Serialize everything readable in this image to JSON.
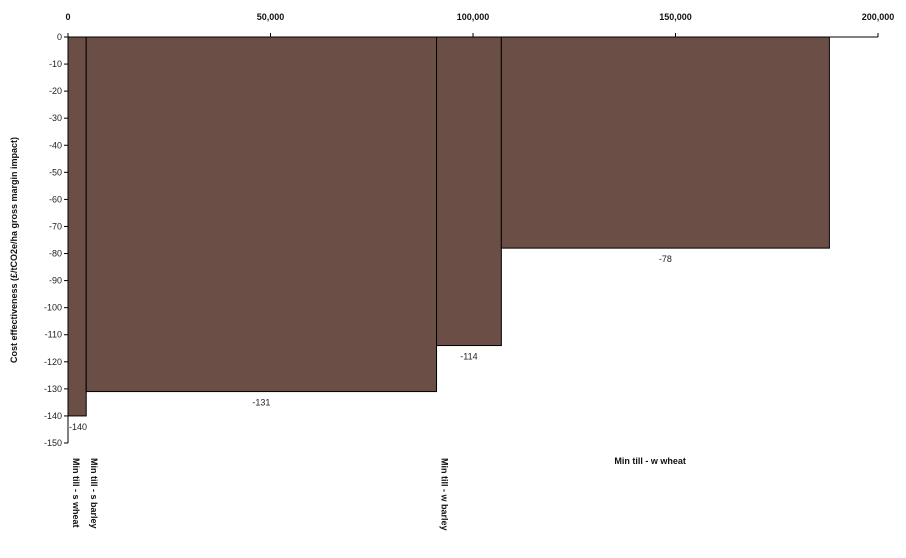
{
  "chart_data": {
    "type": "bar",
    "subtype": "variable-width (marginal abatement cost curve)",
    "title": "",
    "ylabel": "Cost effectiveness (£/tCO2e/ha gross margin impact)",
    "xlabel": "",
    "x_axis_position": "top",
    "xlim": [
      0,
      200000
    ],
    "ylim": [
      -150,
      0
    ],
    "x_ticks": [
      0,
      50000,
      100000,
      150000,
      200000
    ],
    "x_tick_labels": [
      "0",
      "50,000",
      "100,000",
      "150,000",
      "200,000"
    ],
    "y_ticks": [
      0,
      -10,
      -20,
      -30,
      -40,
      -50,
      -60,
      -70,
      -80,
      -90,
      -100,
      -110,
      -120,
      -130,
      -140,
      -150
    ],
    "grid": false,
    "legend": "none",
    "bars": [
      {
        "category": "Min till - s wheat",
        "x_start": 0,
        "x_end": 4500,
        "value": -140,
        "label": "-140"
      },
      {
        "category": "Min till - s barley",
        "x_start": 4500,
        "x_end": 91000,
        "value": -131,
        "label": "-131"
      },
      {
        "category": "Min till - w barley",
        "x_start": 91000,
        "x_end": 107000,
        "value": -114,
        "label": "-114"
      },
      {
        "category": "Min till - w wheat",
        "x_start": 107000,
        "x_end": 188000,
        "value": -78,
        "label": "-78"
      }
    ],
    "bar_color": "#6b4e45",
    "bar_edge_color": "#000000"
  }
}
